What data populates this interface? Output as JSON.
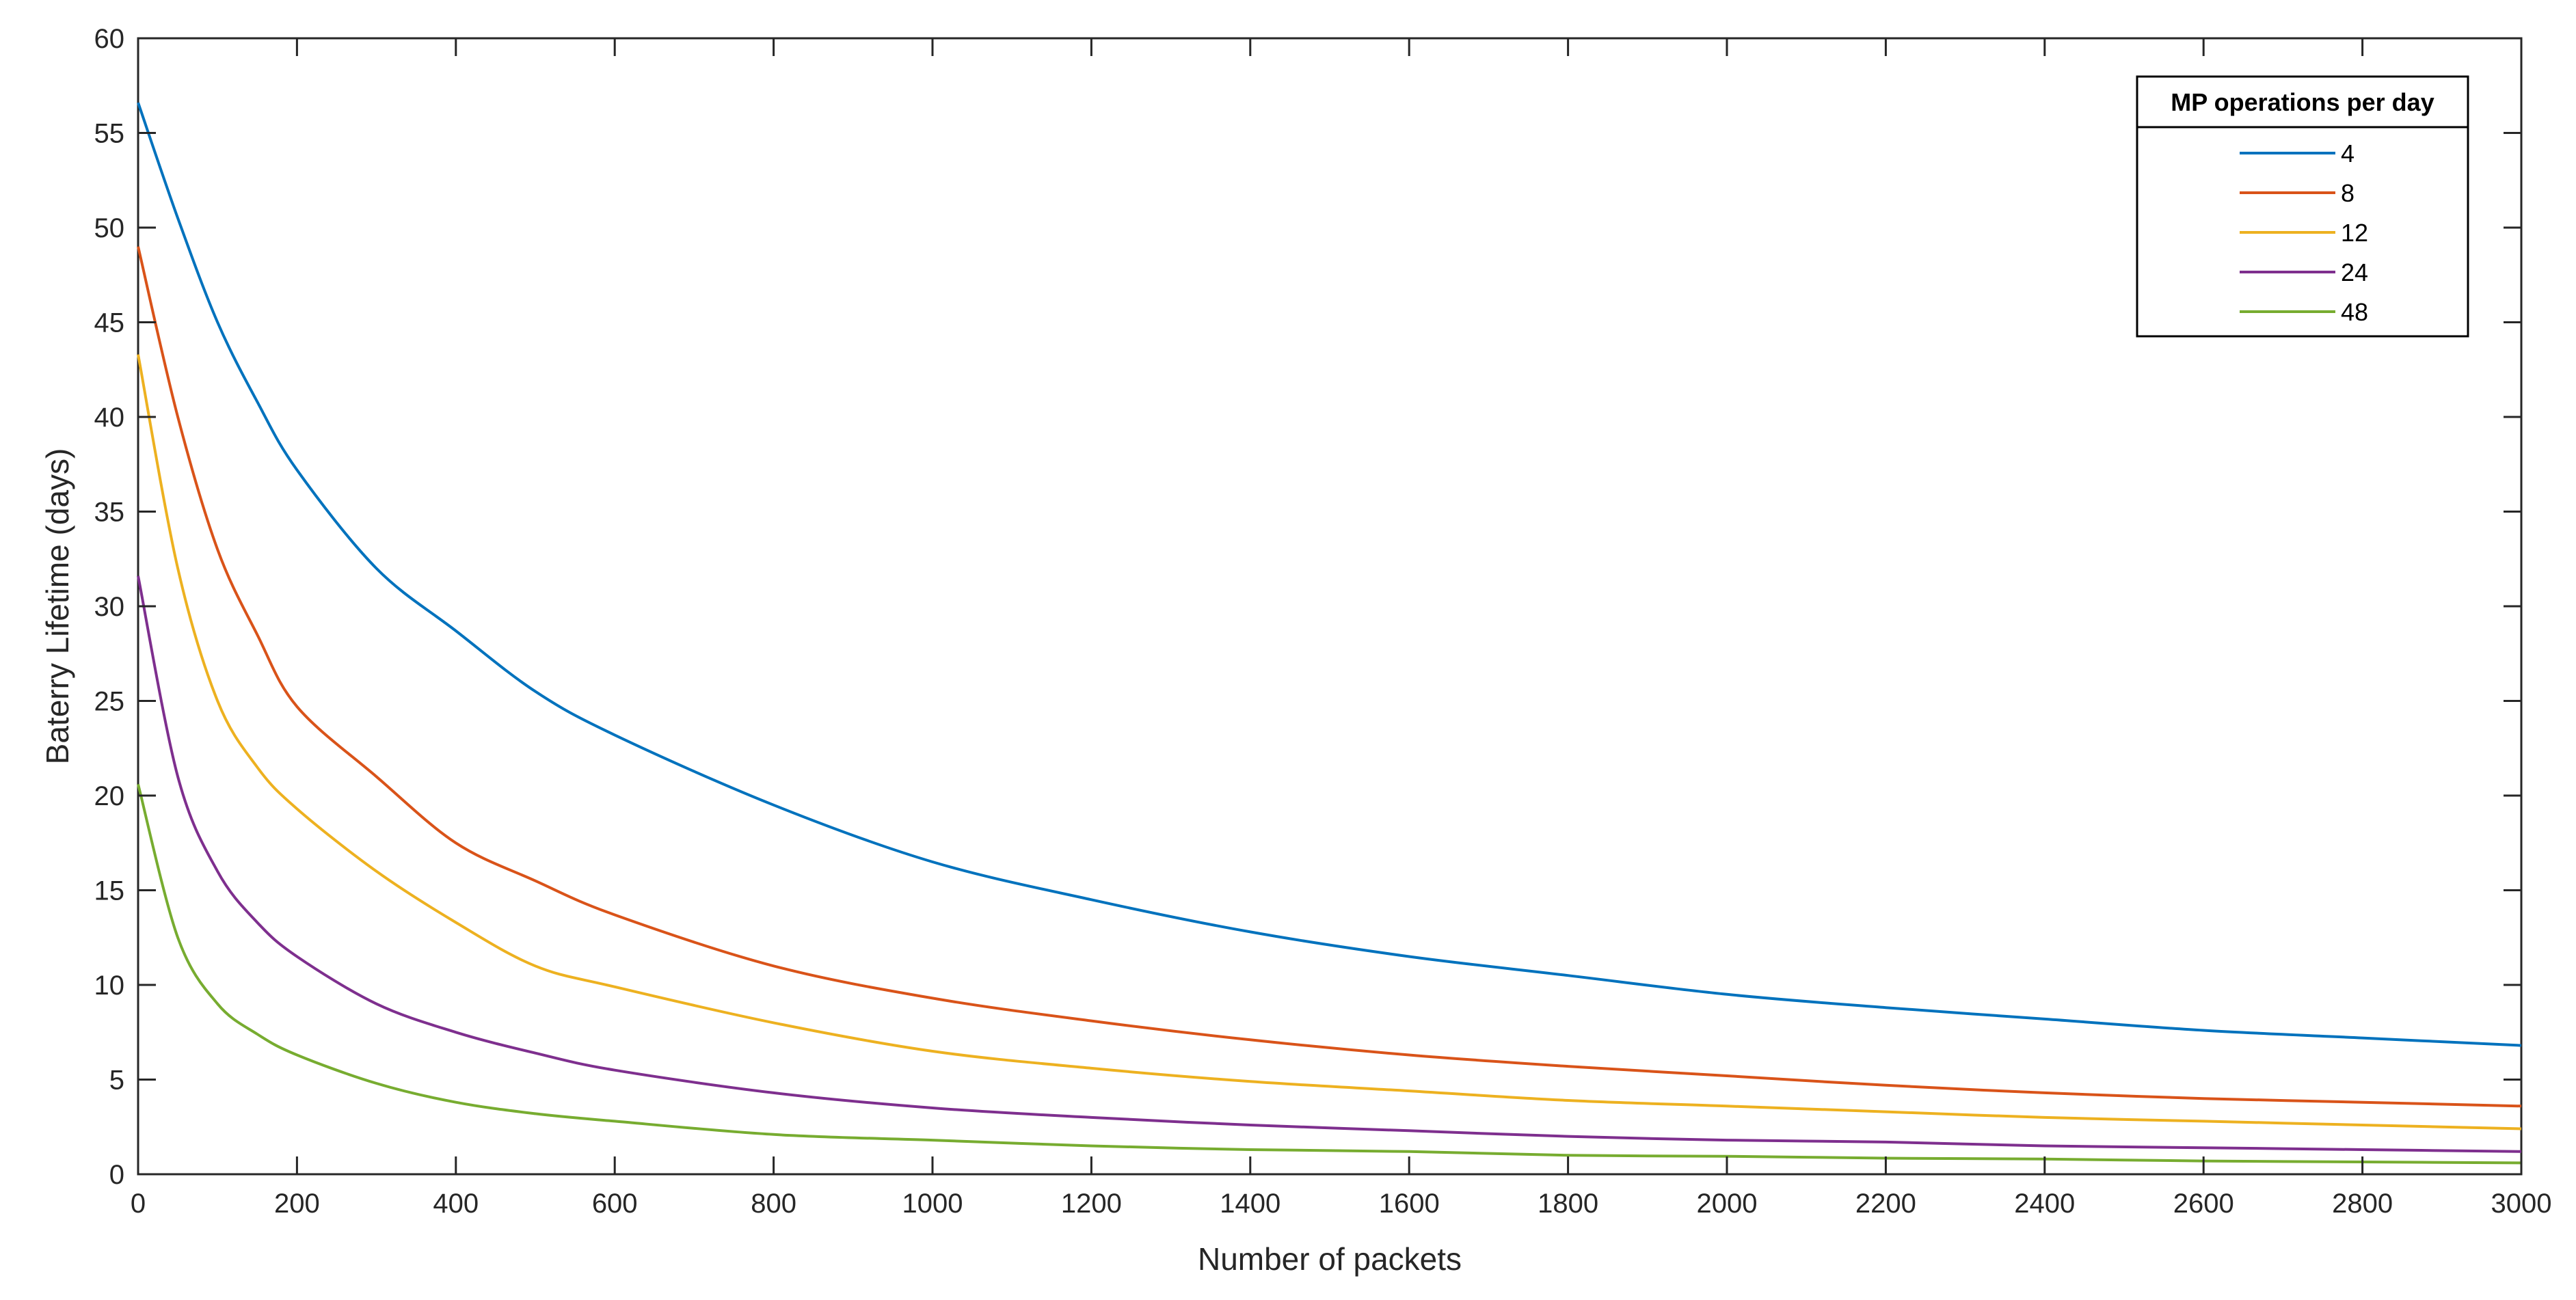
{
  "chart_data": {
    "type": "line",
    "xlabel": "Number of packets",
    "ylabel": "Baterry Lifetime (days)",
    "xlim": [
      0,
      3000
    ],
    "ylim": [
      0,
      60
    ],
    "xticks": [
      0,
      200,
      400,
      600,
      800,
      1000,
      1200,
      1400,
      1600,
      1800,
      2000,
      2200,
      2400,
      2600,
      2800,
      3000
    ],
    "yticks": [
      0,
      5,
      10,
      15,
      20,
      25,
      30,
      35,
      40,
      45,
      50,
      55,
      60
    ],
    "grid": false,
    "legend": {
      "title": "MP operations per day",
      "placement": "top-right"
    },
    "x": [
      0,
      50,
      100,
      150,
      200,
      300,
      400,
      500,
      600,
      800,
      1000,
      1200,
      1400,
      1600,
      1800,
      2000,
      2200,
      2400,
      2600,
      2800,
      3000
    ],
    "series": [
      {
        "name": "4",
        "color": "#0072BD",
        "values": [
          56.6,
          50.5,
          45.0,
          40.8,
          37.2,
          32.0,
          28.7,
          25.5,
          23.2,
          19.5,
          16.5,
          14.5,
          12.8,
          11.5,
          10.5,
          9.5,
          8.8,
          8.2,
          7.6,
          7.2,
          6.8
        ]
      },
      {
        "name": "8",
        "color": "#D95319",
        "values": [
          49.0,
          40.0,
          33.0,
          28.5,
          24.7,
          21.0,
          17.5,
          15.5,
          13.7,
          11.0,
          9.3,
          8.1,
          7.1,
          6.3,
          5.7,
          5.2,
          4.7,
          4.3,
          4.0,
          3.8,
          3.6
        ]
      },
      {
        "name": "12",
        "color": "#EDB120",
        "values": [
          43.3,
          32.0,
          25.0,
          21.5,
          19.3,
          16.0,
          13.3,
          11.0,
          9.9,
          8.0,
          6.5,
          5.6,
          4.9,
          4.4,
          3.9,
          3.6,
          3.3,
          3.0,
          2.8,
          2.6,
          2.4
        ]
      },
      {
        "name": "24",
        "color": "#7E2F8E",
        "values": [
          31.6,
          21.0,
          16.0,
          13.3,
          11.5,
          9.0,
          7.5,
          6.4,
          5.5,
          4.3,
          3.5,
          3.0,
          2.6,
          2.3,
          2.0,
          1.8,
          1.7,
          1.5,
          1.4,
          1.3,
          1.2
        ]
      },
      {
        "name": "48",
        "color": "#77AC30",
        "values": [
          20.6,
          12.5,
          9.0,
          7.4,
          6.3,
          4.8,
          3.8,
          3.2,
          2.8,
          2.1,
          1.8,
          1.5,
          1.3,
          1.2,
          1.0,
          0.95,
          0.85,
          0.8,
          0.7,
          0.65,
          0.6
        ]
      }
    ]
  }
}
